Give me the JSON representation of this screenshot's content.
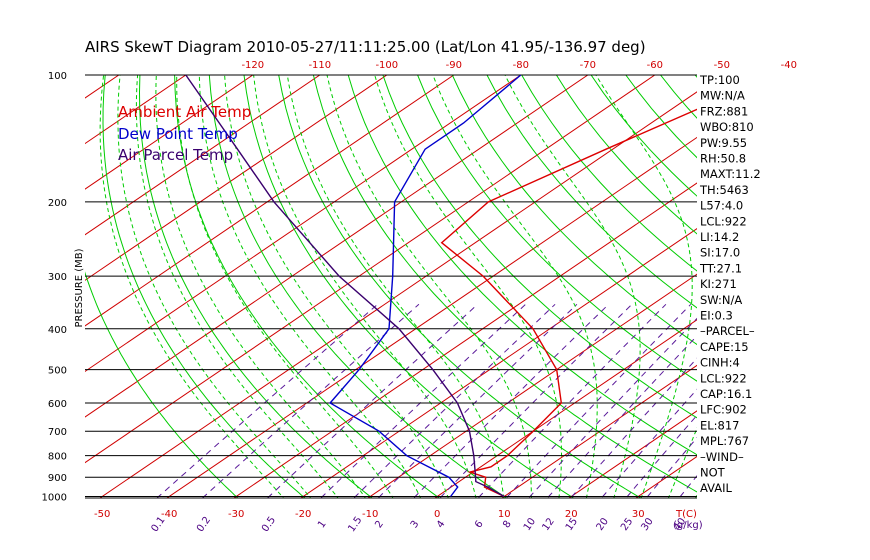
{
  "chart_data": {
    "type": "line",
    "title": "AIRS SkewT Diagram 2010-05-27/11:11:25.00 (Lat/Lon 41.95/-136.97 deg)",
    "ylabel": "PRESSURE (MB)",
    "xlabel": "T(C)",
    "mixing_ratio_unit": "(g/kg)",
    "pressure_ticks": [
      100,
      200,
      300,
      400,
      500,
      600,
      700,
      800,
      900,
      1000
    ],
    "top_temp_ticks": [
      -120,
      -110,
      -100,
      -90,
      -80,
      -70,
      -60,
      -50,
      -40
    ],
    "bottom_temp_ticks": [
      -50,
      -40,
      -30,
      -20,
      -10,
      0,
      10,
      20,
      30
    ],
    "mixing_ratio_ticks": [
      "0.1",
      "0.2",
      "0.5",
      "1",
      "1.5",
      "2",
      "3",
      "4",
      "6",
      "8",
      "10",
      "12",
      "15",
      "20",
      "25",
      "30",
      "40"
    ],
    "legend": [
      "Ambient Air Temp",
      "Dew Point Temp",
      "Air Parcel Temp"
    ],
    "series": [
      {
        "name": "Ambient Air Temp",
        "color": "#dd0000",
        "points": [
          [
            1000,
            10.0
          ],
          [
            950,
            5.0
          ],
          [
            900,
            3.0
          ],
          [
            875,
            -0.5
          ],
          [
            850,
            1.5
          ],
          [
            800,
            1.5
          ],
          [
            700,
            0.0
          ],
          [
            600,
            -2.0
          ],
          [
            500,
            -10.0
          ],
          [
            400,
            -22.5
          ],
          [
            300,
            -41.5
          ],
          [
            250,
            -55.0
          ],
          [
            200,
            -57.0
          ],
          [
            150,
            -51.0
          ],
          [
            100,
            -42.0
          ]
        ]
      },
      {
        "name": "Dew Point Temp",
        "color": "#0000cc",
        "points": [
          [
            1000,
            2.0
          ],
          [
            950,
            1.0
          ],
          [
            900,
            -2.5
          ],
          [
            800,
            -13.5
          ],
          [
            700,
            -23.0
          ],
          [
            600,
            -36.5
          ],
          [
            500,
            -39.5
          ],
          [
            400,
            -44.0
          ],
          [
            300,
            -55.0
          ],
          [
            200,
            -71.0
          ],
          [
            150,
            -78.0
          ],
          [
            130,
            -78.0
          ],
          [
            100,
            -80.0
          ]
        ]
      },
      {
        "name": "Air Parcel Temp",
        "color": "#3a006e",
        "points": [
          [
            1000,
            10.0
          ],
          [
            950,
            5.5
          ],
          [
            922,
            2.5
          ],
          [
            900,
            1.5
          ],
          [
            800,
            -3.5
          ],
          [
            700,
            -9.5
          ],
          [
            600,
            -17.5
          ],
          [
            500,
            -28.5
          ],
          [
            400,
            -42.5
          ],
          [
            300,
            -63.0
          ],
          [
            200,
            -89.0
          ],
          [
            150,
            -106.0
          ],
          [
            100,
            -130.0
          ]
        ]
      }
    ],
    "indices": [
      "TP:100",
      "MW:N/A",
      "FRZ:881",
      "WBO:810",
      "PW:9.55",
      "RH:50.8",
      "MAXT:11.2",
      "TH:5463",
      "L57:4.0",
      "LCL:922",
      "LI:14.2",
      "SI:17.0",
      "TT:27.1",
      "KI:271",
      "SW:N/A",
      "EI:0.3",
      "–PARCEL–",
      "CAPE:15",
      "CINH:4",
      "LCL:922",
      "CAP:16.1",
      "LFC:902",
      "EL:817",
      "MPL:767",
      "–WIND–",
      "NOT",
      "AVAIL"
    ],
    "colors": {
      "temperature_line": "#dd0000",
      "dew_point_line": "#0000cc",
      "parcel_line": "#3a006e",
      "isotherms": "#d00000",
      "dry_adiabats": "#00cc00",
      "moist_adiabats": "#00cc00",
      "mixing_ratio_lines": "#5a1a9a",
      "top_tick_labels": "#d00000",
      "bottom_tick_labels": "#d00000",
      "mixing_labels": "#4b0082",
      "pressure_labels": "#000000"
    },
    "grid": true,
    "legend_position": "top-left"
  }
}
